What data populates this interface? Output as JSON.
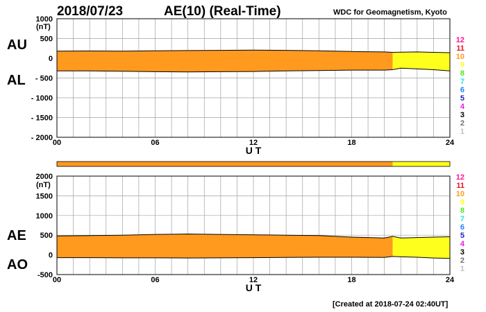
{
  "header": {
    "date": "2018/07/23",
    "title": "AE(10) (Real-Time)",
    "source": "WDC for Geomagnetism, Kyoto"
  },
  "footer": {
    "created": "[Created at 2018-07-24 02:40UT]"
  },
  "colors": {
    "band_main": "#ff9a1e",
    "band_late": "#ffff1e",
    "grid": "#a0a0a0",
    "trace": "#000000"
  },
  "station_legend": [
    {
      "label": "12",
      "color": "#ff1493"
    },
    {
      "label": "11",
      "color": "#e8141e"
    },
    {
      "label": "10",
      "color": "#ff9a1e"
    },
    {
      "label": "9",
      "color": "#ffff1e"
    },
    {
      "label": "8",
      "color": "#50e61e"
    },
    {
      "label": "7",
      "color": "#1ee6e6"
    },
    {
      "label": "6",
      "color": "#1e82ff"
    },
    {
      "label": "5",
      "color": "#1e1ebe"
    },
    {
      "label": "4",
      "color": "#e61ee6"
    },
    {
      "label": "3",
      "color": "#000000"
    },
    {
      "label": "2",
      "color": "#707070"
    },
    {
      "label": "1",
      "color": "#c0c0c0"
    }
  ],
  "chart_data": [
    {
      "type": "area",
      "name": "AU/AL",
      "left_labels": [
        "AU",
        "AL"
      ],
      "unit": "(nT)",
      "xlabel": "U T",
      "xlim": [
        0,
        24
      ],
      "ylim": [
        -2000,
        1000
      ],
      "x_ticks": [
        "00",
        "06",
        "12",
        "18",
        "24"
      ],
      "y_ticks": [
        "1000",
        "500",
        "0",
        "- 500",
        "- 1000",
        "- 1500",
        "- 2000"
      ],
      "grid": true,
      "series": [
        {
          "name": "AU",
          "x": [
            0,
            2,
            4,
            6,
            8,
            10,
            12,
            14,
            16,
            18,
            20,
            20.5,
            21,
            22,
            23,
            24
          ],
          "values": [
            180,
            185,
            180,
            190,
            195,
            200,
            205,
            200,
            190,
            170,
            160,
            150,
            155,
            160,
            150,
            140
          ]
        },
        {
          "name": "AL",
          "x": [
            0,
            2,
            4,
            6,
            8,
            10,
            12,
            14,
            16,
            18,
            20,
            20.5,
            21,
            22,
            23,
            24
          ],
          "values": [
            -320,
            -320,
            -330,
            -340,
            -345,
            -340,
            -335,
            -320,
            -310,
            -300,
            -300,
            -290,
            -250,
            -270,
            -290,
            -320
          ]
        }
      ],
      "segments": [
        {
          "from": 0,
          "to": 20.5,
          "stations": "10"
        },
        {
          "from": 20.5,
          "to": 24,
          "stations": "9"
        }
      ]
    },
    {
      "type": "area",
      "name": "AE/AO",
      "left_labels": [
        "AE",
        "AO"
      ],
      "unit": "(nT)",
      "xlabel": "U T",
      "xlim": [
        0,
        24
      ],
      "ylim": [
        -500,
        2000
      ],
      "x_ticks": [
        "00",
        "06",
        "12",
        "18",
        "24"
      ],
      "y_ticks": [
        "2000",
        "1500",
        "1000",
        "500",
        "0",
        "-500"
      ],
      "grid": true,
      "series": [
        {
          "name": "AE",
          "x": [
            0,
            2,
            4,
            6,
            8,
            10,
            12,
            14,
            16,
            18,
            20,
            20.5,
            21,
            22,
            23,
            24
          ],
          "values": [
            480,
            490,
            500,
            520,
            530,
            520,
            510,
            500,
            490,
            450,
            430,
            470,
            430,
            440,
            450,
            460
          ]
        },
        {
          "name": "AO",
          "x": [
            0,
            2,
            4,
            6,
            8,
            10,
            12,
            14,
            16,
            18,
            20,
            20.5,
            21,
            22,
            23,
            24
          ],
          "values": [
            -70,
            -70,
            -75,
            -75,
            -80,
            -75,
            -70,
            -65,
            -60,
            -60,
            -65,
            -40,
            -50,
            -60,
            -80,
            -90
          ]
        }
      ],
      "segments": [
        {
          "from": 0,
          "to": 20.5,
          "stations": "10"
        },
        {
          "from": 20.5,
          "to": 24,
          "stations": "9"
        }
      ]
    }
  ]
}
